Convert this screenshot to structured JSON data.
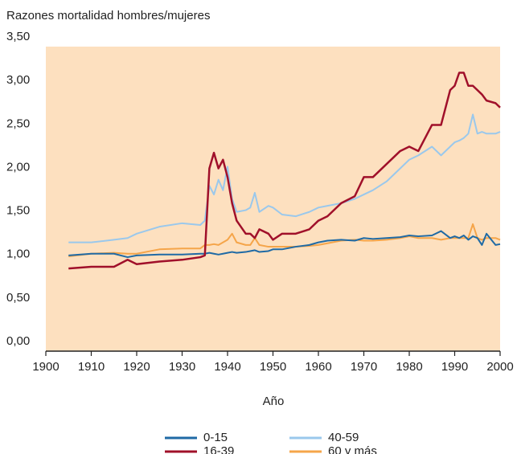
{
  "chart_data": {
    "type": "line",
    "y_label": "Razones mortalidad hombres/mujeres",
    "x_label": "Año",
    "x": [
      1905,
      1910,
      1915,
      1918,
      1920,
      1925,
      1930,
      1934,
      1935,
      1936,
      1937,
      1938,
      1939,
      1940,
      1941,
      1942,
      1944,
      1945,
      1946,
      1947,
      1949,
      1950,
      1952,
      1955,
      1958,
      1960,
      1962,
      1965,
      1968,
      1970,
      1972,
      1975,
      1978,
      1980,
      1982,
      1985,
      1987,
      1989,
      1990,
      1991,
      1992,
      1993,
      1994,
      1995,
      1996,
      1997,
      1999,
      2000
    ],
    "series": [
      {
        "name": "0-15",
        "color": "#1f6aa5",
        "values": [
          1.1,
          1.12,
          1.12,
          1.08,
          1.1,
          1.11,
          1.11,
          1.12,
          1.12,
          1.13,
          1.12,
          1.11,
          1.12,
          1.13,
          1.14,
          1.13,
          1.14,
          1.15,
          1.16,
          1.14,
          1.15,
          1.17,
          1.17,
          1.2,
          1.22,
          1.25,
          1.27,
          1.28,
          1.27,
          1.3,
          1.29,
          1.3,
          1.31,
          1.33,
          1.32,
          1.33,
          1.38,
          1.3,
          1.32,
          1.3,
          1.33,
          1.28,
          1.32,
          1.3,
          1.22,
          1.35,
          1.22,
          1.23
        ]
      },
      {
        "name": "16-39",
        "color": "#a0102a",
        "values": [
          0.95,
          0.97,
          0.97,
          1.05,
          1.0,
          1.03,
          1.05,
          1.08,
          1.1,
          2.1,
          2.28,
          2.1,
          2.2,
          2.0,
          1.7,
          1.5,
          1.35,
          1.35,
          1.3,
          1.4,
          1.35,
          1.28,
          1.35,
          1.35,
          1.4,
          1.5,
          1.55,
          1.7,
          1.78,
          2.0,
          2.0,
          2.15,
          2.3,
          2.35,
          2.3,
          2.6,
          2.6,
          3.0,
          3.05,
          3.2,
          3.2,
          3.05,
          3.05,
          3.0,
          2.95,
          2.88,
          2.85,
          2.8
        ]
      },
      {
        "name": "40-59",
        "color": "#9ac8ec",
        "values": [
          1.25,
          1.25,
          1.28,
          1.3,
          1.35,
          1.43,
          1.47,
          1.45,
          1.5,
          1.9,
          1.8,
          1.97,
          1.85,
          2.12,
          1.75,
          1.6,
          1.62,
          1.65,
          1.82,
          1.6,
          1.67,
          1.65,
          1.57,
          1.55,
          1.6,
          1.65,
          1.67,
          1.7,
          1.75,
          1.8,
          1.85,
          1.95,
          2.1,
          2.2,
          2.25,
          2.35,
          2.25,
          2.35,
          2.4,
          2.42,
          2.45,
          2.5,
          2.72,
          2.5,
          2.52,
          2.5,
          2.5,
          2.52
        ]
      },
      {
        "name": "60 y más",
        "color": "#f5a54a",
        "values": [
          1.09,
          1.12,
          1.13,
          1.12,
          1.12,
          1.17,
          1.18,
          1.18,
          1.22,
          1.22,
          1.23,
          1.22,
          1.25,
          1.28,
          1.35,
          1.25,
          1.22,
          1.22,
          1.3,
          1.22,
          1.2,
          1.2,
          1.2,
          1.2,
          1.21,
          1.22,
          1.24,
          1.27,
          1.28,
          1.27,
          1.27,
          1.28,
          1.3,
          1.32,
          1.3,
          1.3,
          1.28,
          1.3,
          1.3,
          1.3,
          1.3,
          1.3,
          1.46,
          1.3,
          1.28,
          1.3,
          1.3,
          1.28
        ]
      }
    ],
    "xlim": [
      1900,
      2000
    ],
    "xticks": [
      1900,
      1910,
      1920,
      1930,
      1940,
      1950,
      1960,
      1970,
      1980,
      1990,
      2000
    ],
    "ylim": [
      0,
      3.5
    ],
    "yticks": [
      {
        "value": 0,
        "label": "0,00"
      },
      {
        "value": 0.5,
        "label": "0,50"
      },
      {
        "value": 1,
        "label": "1,00"
      },
      {
        "value": 1.5,
        "label": "1,50"
      },
      {
        "value": 2,
        "label": "2,00"
      },
      {
        "value": 2.5,
        "label": "2,50"
      },
      {
        "value": 3,
        "label": "3,00"
      },
      {
        "value": 3.5,
        "label": "3,50"
      }
    ],
    "background": "#fde0bf",
    "grid": false
  }
}
